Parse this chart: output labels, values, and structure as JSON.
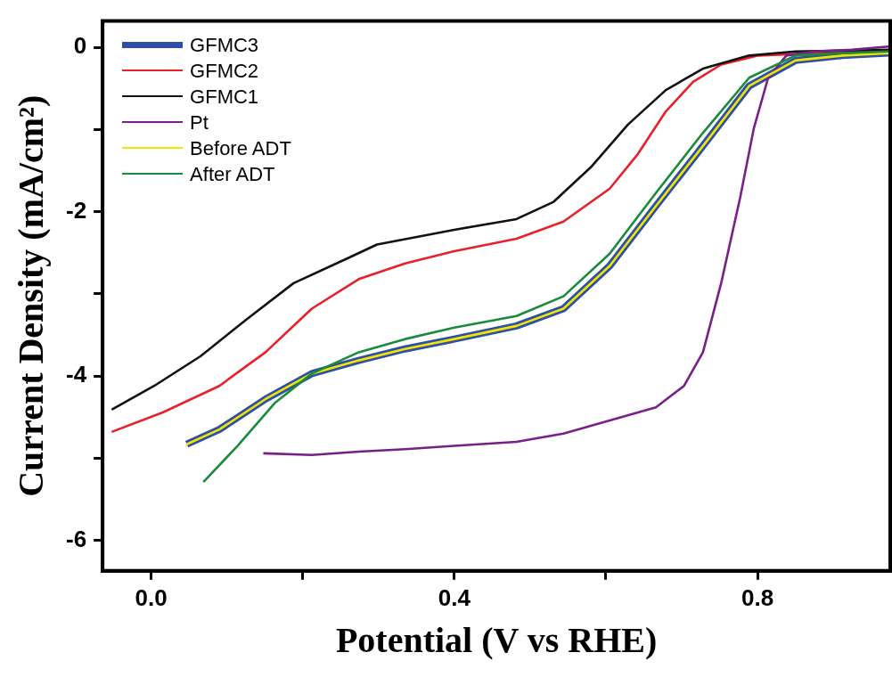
{
  "chart_data": {
    "type": "line",
    "xlabel": "Potential (V vs RHE)",
    "ylabel": "Current Density (mA/cm²)",
    "xlim": [
      -0.064,
      0.975
    ],
    "ylim": [
      -6.37,
      0.32
    ],
    "xticks": [
      {
        "value": 0,
        "label": "0.0"
      },
      {
        "value": 0.2,
        "label": null
      },
      0.4,
      {
        "value": 0.6,
        "label": null
      },
      0.8
    ],
    "yticks": [
      0,
      {
        "value": -1,
        "label": null
      },
      -2,
      {
        "value": -3,
        "label": null
      },
      -4,
      {
        "value": -5,
        "label": null
      },
      -6
    ],
    "grid": false,
    "legend": "top left",
    "marker": "none",
    "line_style": "solid",
    "series": [
      {
        "name": "GFMC3",
        "color": "#2e4fa8",
        "x": [
          0.047,
          0.09,
          0.151,
          0.212,
          0.274,
          0.335,
          0.4,
          0.482,
          0.544,
          0.605,
          0.666,
          0.728,
          0.789,
          0.85,
          0.912,
          0.973
        ],
        "values": [
          -4.83,
          -4.65,
          -4.28,
          -3.97,
          -3.81,
          -3.67,
          -3.55,
          -3.39,
          -3.18,
          -2.66,
          -1.93,
          -1.2,
          -0.47,
          -0.16,
          -0.1,
          -0.07
        ]
      },
      {
        "name": "GFMC2",
        "color": "#e8202a",
        "x": [
          -0.052,
          0.016,
          0.09,
          0.151,
          0.212,
          0.274,
          0.335,
          0.4,
          0.482,
          0.544,
          0.605,
          0.642,
          0.679,
          0.715,
          0.752,
          0.801,
          0.875,
          0.973
        ],
        "values": [
          -4.68,
          -4.44,
          -4.12,
          -3.71,
          -3.18,
          -2.82,
          -2.63,
          -2.48,
          -2.33,
          -2.12,
          -1.72,
          -1.3,
          -0.78,
          -0.42,
          -0.21,
          -0.1,
          -0.07,
          -0.05
        ]
      },
      {
        "name": "GFMC1",
        "color": "#111111",
        "x": [
          -0.052,
          0.004,
          0.065,
          0.126,
          0.188,
          0.261,
          0.298,
          0.4,
          0.482,
          0.531,
          0.58,
          0.629,
          0.679,
          0.728,
          0.789,
          0.85,
          0.973
        ],
        "values": [
          -4.41,
          -4.12,
          -3.76,
          -3.31,
          -2.87,
          -2.56,
          -2.4,
          -2.22,
          -2.09,
          -1.88,
          -1.46,
          -0.94,
          -0.52,
          -0.26,
          -0.1,
          -0.05,
          -0.03
        ]
      },
      {
        "name": "Pt",
        "color": "#7a1f8a",
        "x": [
          0.148,
          0.212,
          0.274,
          0.335,
          0.4,
          0.482,
          0.544,
          0.605,
          0.666,
          0.703,
          0.728,
          0.752,
          0.777,
          0.795,
          0.814,
          0.838,
          0.875,
          0.924,
          0.973
        ],
        "values": [
          -4.94,
          -4.96,
          -4.92,
          -4.89,
          -4.85,
          -4.8,
          -4.7,
          -4.54,
          -4.38,
          -4.12,
          -3.71,
          -2.87,
          -1.83,
          -0.99,
          -0.37,
          -0.1,
          -0.05,
          -0.03,
          0.01
        ]
      },
      {
        "name": "Before ADT",
        "color": "#f2e600",
        "x": [
          0.047,
          0.09,
          0.151,
          0.212,
          0.274,
          0.335,
          0.4,
          0.482,
          0.544,
          0.605,
          0.666,
          0.728,
          0.789,
          0.85,
          0.912,
          0.973
        ],
        "values": [
          -4.83,
          -4.65,
          -4.28,
          -3.97,
          -3.81,
          -3.67,
          -3.55,
          -3.39,
          -3.18,
          -2.66,
          -1.93,
          -1.2,
          -0.47,
          -0.16,
          -0.1,
          -0.07
        ]
      },
      {
        "name": "After ADT",
        "color": "#1a8a3c",
        "x": [
          0.069,
          0.114,
          0.163,
          0.212,
          0.274,
          0.335,
          0.4,
          0.482,
          0.544,
          0.605,
          0.666,
          0.728,
          0.789,
          0.85,
          0.912,
          0.973
        ],
        "values": [
          -5.29,
          -4.85,
          -4.33,
          -3.97,
          -3.71,
          -3.55,
          -3.41,
          -3.27,
          -3.03,
          -2.51,
          -1.77,
          -1.04,
          -0.37,
          -0.1,
          -0.07,
          -0.05
        ]
      }
    ]
  }
}
